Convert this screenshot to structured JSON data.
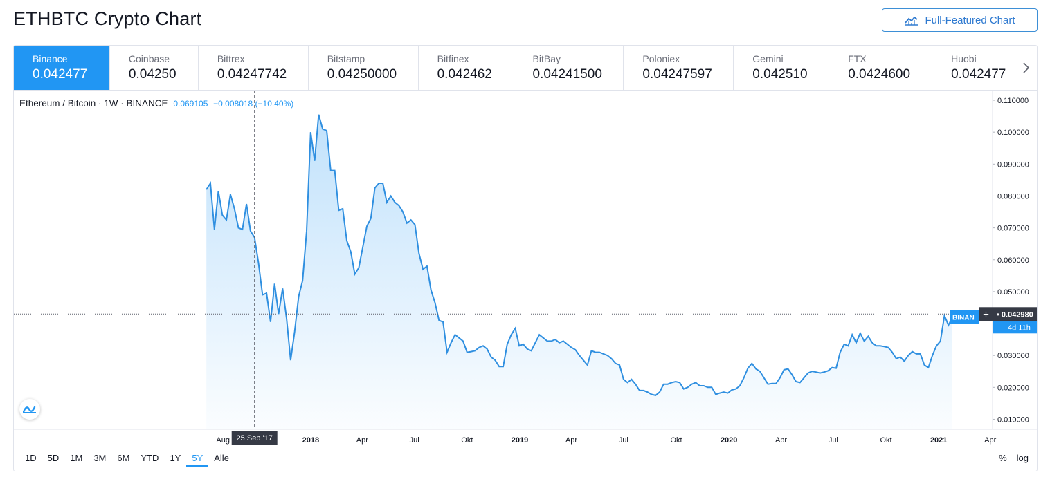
{
  "page": {
    "title": "ETHBTC Crypto Chart",
    "full_chart_label": "Full-Featured Chart"
  },
  "exchanges": [
    {
      "name": "Binance",
      "price": "0.042477",
      "active": true
    },
    {
      "name": "Coinbase",
      "price": "0.04250"
    },
    {
      "name": "Bittrex",
      "price": "0.04247742"
    },
    {
      "name": "Bitstamp",
      "price": "0.04250000"
    },
    {
      "name": "Bitfinex",
      "price": "0.042462"
    },
    {
      "name": "BitBay",
      "price": "0.04241500"
    },
    {
      "name": "Poloniex",
      "price": "0.04247597"
    },
    {
      "name": "Gemini",
      "price": "0.042510"
    },
    {
      "name": "FTX",
      "price": "0.0424600"
    },
    {
      "name": "Huobi",
      "price": "0.042477"
    }
  ],
  "legend": {
    "symbol": "Ethereum / Bitcoin · 1W · BINANCE",
    "value": "0.069105",
    "change": "−0.008018 (−10.40%)"
  },
  "price_label": {
    "tag": "BINAN",
    "value": "0.042980",
    "countdown": "4d 11h"
  },
  "crosshair": {
    "date": "25 Sep '17"
  },
  "timeframes": [
    "1D",
    "5D",
    "1M",
    "3M",
    "6M",
    "YTD",
    "1Y",
    "5Y",
    "Alle"
  ],
  "active_timeframe": "5Y",
  "scale_options": [
    "%",
    "log"
  ],
  "colors": {
    "accent": "#2196f3",
    "line": "#2f8fe0",
    "text": "#131722",
    "muted": "#6a6d78"
  },
  "chart_data": {
    "type": "area",
    "ylim": [
      0.0075,
      0.1125
    ],
    "xlim": [
      "2016-08-01",
      "2021-04-05"
    ],
    "y_ticks": [
      "0.010000",
      "0.020000",
      "0.030000",
      "0.040000",
      "0.050000",
      "0.060000",
      "0.070000",
      "0.080000",
      "0.090000",
      "0.100000",
      "0.110000"
    ],
    "x_ticks": [
      {
        "label": "Aug",
        "date": "2017-08-01",
        "bold": false
      },
      {
        "label": "2018",
        "date": "2018-01-01",
        "bold": true
      },
      {
        "label": "Apr",
        "date": "2018-04-01",
        "bold": false
      },
      {
        "label": "Jul",
        "date": "2018-07-01",
        "bold": false
      },
      {
        "label": "Okt",
        "date": "2018-10-01",
        "bold": false
      },
      {
        "label": "2019",
        "date": "2019-01-01",
        "bold": true
      },
      {
        "label": "Apr",
        "date": "2019-04-01",
        "bold": false
      },
      {
        "label": "Jul",
        "date": "2019-07-01",
        "bold": false
      },
      {
        "label": "Okt",
        "date": "2019-10-01",
        "bold": false
      },
      {
        "label": "2020",
        "date": "2020-01-01",
        "bold": true
      },
      {
        "label": "Apr",
        "date": "2020-04-01",
        "bold": false
      },
      {
        "label": "Jul",
        "date": "2020-07-01",
        "bold": false
      },
      {
        "label": "Okt",
        "date": "2020-10-01",
        "bold": false
      },
      {
        "label": "2021",
        "date": "2021-01-01",
        "bold": true
      },
      {
        "label": "Apr",
        "date": "2021-04-01",
        "bold": false
      }
    ],
    "x_date_start": "2017-07-03",
    "x_step_days": 7,
    "series": [
      {
        "values": [
          0.082,
          0.084,
          0.0695,
          0.0815,
          0.074,
          0.0725,
          0.0805,
          0.076,
          0.07,
          0.0695,
          0.0775,
          0.069,
          0.067,
          0.059,
          0.049,
          0.0495,
          0.0405,
          0.0525,
          0.043,
          0.051,
          0.0415,
          0.0285,
          0.0375,
          0.0485,
          0.0535,
          0.069,
          0.1,
          0.091,
          0.1055,
          0.101,
          0.1005,
          0.088,
          0.088,
          0.0755,
          0.076,
          0.066,
          0.0625,
          0.0555,
          0.0575,
          0.064,
          0.0705,
          0.073,
          0.0825,
          0.084,
          0.084,
          0.078,
          0.08,
          0.078,
          0.077,
          0.075,
          0.0715,
          0.0725,
          0.071,
          0.062,
          0.057,
          0.058,
          0.0505,
          0.0465,
          0.041,
          0.0405,
          0.031,
          0.034,
          0.0365,
          0.0355,
          0.0345,
          0.031,
          0.0312,
          0.0315,
          0.0325,
          0.033,
          0.032,
          0.0295,
          0.0285,
          0.0265,
          0.0265,
          0.0335,
          0.0365,
          0.0385,
          0.033,
          0.0335,
          0.032,
          0.0315,
          0.034,
          0.0365,
          0.0355,
          0.0345,
          0.0345,
          0.035,
          0.034,
          0.0345,
          0.0335,
          0.0325,
          0.0318,
          0.03,
          0.0285,
          0.027,
          0.0315,
          0.031,
          0.031,
          0.0305,
          0.03,
          0.029,
          0.0275,
          0.027,
          0.0225,
          0.0215,
          0.0225,
          0.021,
          0.019,
          0.019,
          0.0185,
          0.0178,
          0.0175,
          0.0185,
          0.021,
          0.021,
          0.0215,
          0.0218,
          0.0215,
          0.0195,
          0.02,
          0.021,
          0.0215,
          0.0205,
          0.0205,
          0.02,
          0.02,
          0.0178,
          0.0182,
          0.0185,
          0.0182,
          0.0192,
          0.0195,
          0.0205,
          0.023,
          0.026,
          0.0275,
          0.0258,
          0.025,
          0.023,
          0.021,
          0.0212,
          0.0212,
          0.023,
          0.0255,
          0.0258,
          0.024,
          0.0218,
          0.0215,
          0.023,
          0.0245,
          0.025,
          0.0248,
          0.0245,
          0.0248,
          0.0252,
          0.0262,
          0.026,
          0.031,
          0.0335,
          0.033,
          0.0365,
          0.034,
          0.037,
          0.0345,
          0.036,
          0.034,
          0.033,
          0.033,
          0.0328,
          0.0325,
          0.031,
          0.029,
          0.0295,
          0.0282,
          0.03,
          0.0312,
          0.0305,
          0.0305,
          0.027,
          0.0262,
          0.03,
          0.033,
          0.0345,
          0.0425,
          0.0395,
          0.042
        ]
      }
    ]
  }
}
